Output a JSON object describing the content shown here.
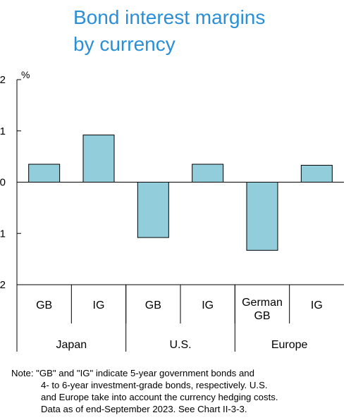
{
  "title": {
    "line1": "Bond interest margins",
    "line2": "by currency"
  },
  "chart_data": {
    "type": "bar",
    "title": "Bond interest margins by currency",
    "yunit": "%",
    "ylim": [
      -2,
      2
    ],
    "yticks": [
      2,
      1,
      0,
      -1,
      -2
    ],
    "ytick_labels": [
      "2",
      "1",
      "0",
      "1",
      "2"
    ],
    "categories": [
      "GB",
      "IG",
      "GB",
      "IG",
      "German GB",
      "IG"
    ],
    "category_lines": [
      [
        "GB"
      ],
      [
        "IG"
      ],
      [
        "GB"
      ],
      [
        "IG"
      ],
      [
        "German",
        "GB"
      ],
      [
        "IG"
      ]
    ],
    "groups": [
      "Japan",
      "U.S.",
      "Europe"
    ],
    "group_sizes": [
      2,
      2,
      2
    ],
    "values": [
      0.35,
      0.92,
      -1.08,
      0.35,
      -1.33,
      0.33
    ],
    "bar_color": "#92cddc",
    "bar_edge": "#000000",
    "grid": false
  },
  "note": {
    "line1": "Note: \"GB\" and \"IG\" indicate 5-year government bonds and",
    "line2": "4- to 6-year investment-grade bonds, respectively. U.S.",
    "line3": "and Europe take into account the currency hedging costs.",
    "line4": "Data as of end-September 2023. See Chart II-3-3."
  }
}
